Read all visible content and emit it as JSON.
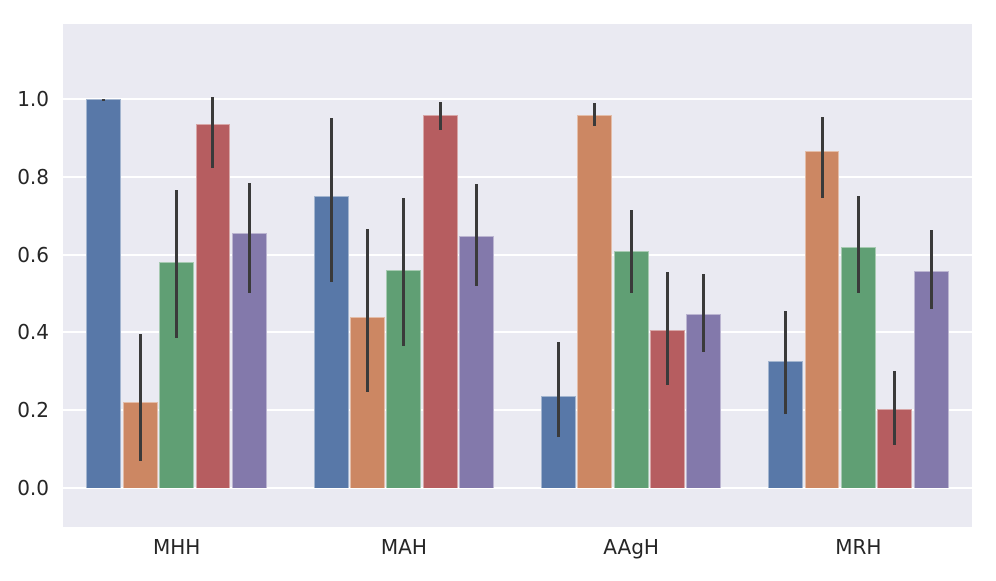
{
  "chart_data": {
    "type": "bar",
    "title": "",
    "xlabel": "",
    "ylabel": "",
    "legend": "none",
    "grid": true,
    "categories": [
      "MHH",
      "MAH",
      "AAgH",
      "MRH"
    ],
    "series": [
      {
        "name": "series-1-blue",
        "color": "#5878a8",
        "values": [
          1.0,
          0.75,
          0.235,
          0.325
        ],
        "err_lo": [
          0.995,
          0.53,
          0.13,
          0.19
        ],
        "err_hi": [
          1.0,
          0.95,
          0.375,
          0.455
        ]
      },
      {
        "name": "series-2-orange",
        "color": "#cc8763",
        "values": [
          0.22,
          0.44,
          0.96,
          0.865
        ],
        "err_lo": [
          0.07,
          0.245,
          0.93,
          0.745
        ],
        "err_hi": [
          0.395,
          0.665,
          0.99,
          0.955
        ]
      },
      {
        "name": "series-3-green",
        "color": "#609f74",
        "values": [
          0.58,
          0.56,
          0.61,
          0.62
        ],
        "err_lo": [
          0.385,
          0.365,
          0.5,
          0.5
        ],
        "err_hi": [
          0.765,
          0.745,
          0.715,
          0.75
        ]
      },
      {
        "name": "series-4-red",
        "color": "#b65d60",
        "values": [
          0.937,
          0.958,
          0.405,
          0.203
        ],
        "err_lo": [
          0.822,
          0.92,
          0.265,
          0.11
        ],
        "err_hi": [
          1.005,
          0.992,
          0.555,
          0.3
        ]
      },
      {
        "name": "series-5-purple",
        "color": "#8379ab",
        "values": [
          0.655,
          0.648,
          0.448,
          0.558
        ],
        "err_lo": [
          0.5,
          0.52,
          0.35,
          0.46
        ],
        "err_hi": [
          0.785,
          0.782,
          0.55,
          0.662
        ]
      }
    ],
    "yticks": [
      "0.0",
      "0.2",
      "0.4",
      "0.6",
      "0.8",
      "1.0"
    ],
    "ytick_values": [
      0.0,
      0.2,
      0.4,
      0.6,
      0.8,
      1.0
    ],
    "ylim": [
      -0.101,
      1.193
    ],
    "colors": {
      "plot_background": "#eaeaf2",
      "gridline": "#ffffff",
      "error_bar": "#3a3a3a",
      "tick_text": "#262626",
      "figure_background": "#ffffff"
    }
  }
}
